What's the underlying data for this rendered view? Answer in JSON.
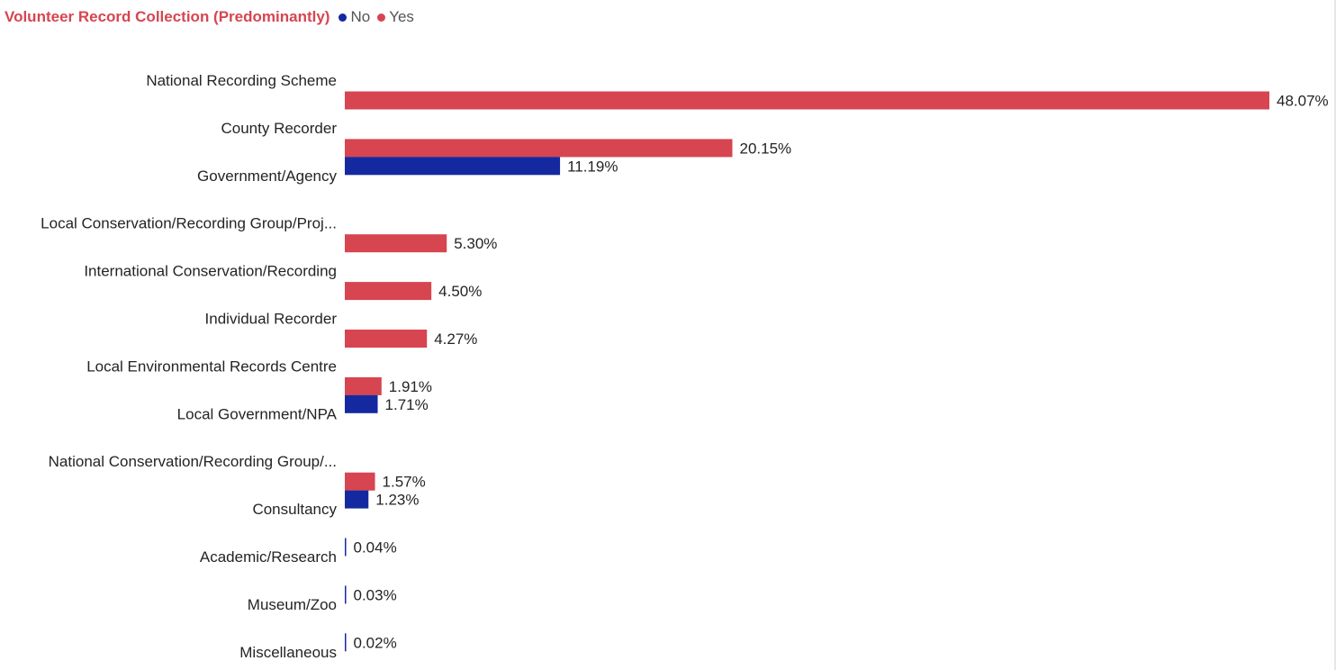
{
  "chart_data": {
    "type": "bar",
    "orientation": "horizontal",
    "title": "Volunteer Record Collection (Predominantly)",
    "legend": {
      "position": "top-left",
      "entries": [
        {
          "name": "No",
          "color": "#1429A0"
        },
        {
          "name": "Yes",
          "color": "#D64550"
        }
      ]
    },
    "categories": [
      "National Recording Scheme",
      "County Recorder",
      "Government/Agency",
      "Local Conservation/Recording Group/Proj...",
      "International Conservation/Recording",
      "Individual Recorder",
      "Local Environmental Records Centre",
      "Local Government/NPA",
      "National Conservation/Recording Group/...",
      "Consultancy",
      "Academic/Research",
      "Museum/Zoo",
      "Miscellaneous"
    ],
    "series": [
      {
        "name": "No",
        "values": [
          null,
          null,
          11.19,
          null,
          null,
          null,
          null,
          1.71,
          null,
          1.23,
          0.04,
          0.03,
          0.02
        ],
        "labels": [
          null,
          null,
          "11.19%",
          null,
          null,
          null,
          null,
          "1.71%",
          null,
          "1.23%",
          "0.04%",
          "0.03%",
          "0.02%"
        ]
      },
      {
        "name": "Yes",
        "values": [
          48.07,
          20.15,
          null,
          5.3,
          4.5,
          4.27,
          1.91,
          null,
          1.57,
          null,
          null,
          null,
          null
        ],
        "labels": [
          "48.07%",
          "20.15%",
          null,
          "5.30%",
          "4.50%",
          "4.27%",
          "1.91%",
          null,
          "1.57%",
          null,
          null,
          null,
          null
        ]
      }
    ],
    "xlim": [
      0,
      48.07
    ],
    "grid": false,
    "value_format": "percent"
  },
  "colors": {
    "title": "#D64550",
    "no": "#1429A0",
    "yes": "#D64550"
  }
}
